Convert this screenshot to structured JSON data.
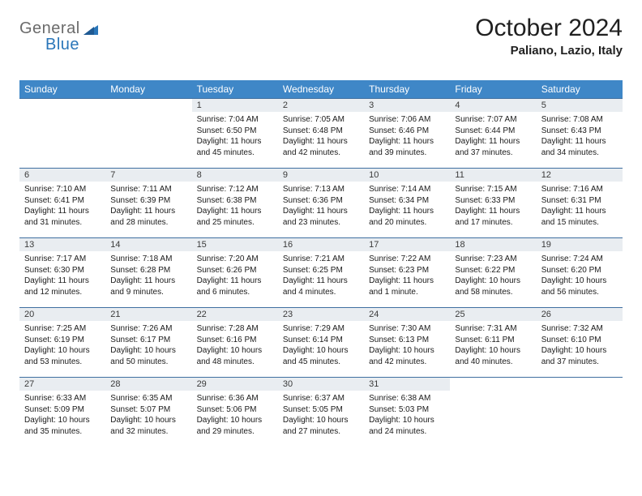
{
  "brand": {
    "part1": "General",
    "part2": "Blue"
  },
  "title": "October 2024",
  "location": "Paliano, Lazio, Italy",
  "colors": {
    "header_bg": "#3f87c7",
    "header_text": "#ffffff",
    "daynum_bg": "#e9edf1",
    "border": "#3f6fa0",
    "brand_gray": "#6b6b6b",
    "brand_blue": "#2a76b9"
  },
  "day_headers": [
    "Sunday",
    "Monday",
    "Tuesday",
    "Wednesday",
    "Thursday",
    "Friday",
    "Saturday"
  ],
  "weeks": [
    [
      null,
      null,
      {
        "n": "1",
        "sunrise": "7:04 AM",
        "sunset": "6:50 PM",
        "daylight": "11 hours and 45 minutes."
      },
      {
        "n": "2",
        "sunrise": "7:05 AM",
        "sunset": "6:48 PM",
        "daylight": "11 hours and 42 minutes."
      },
      {
        "n": "3",
        "sunrise": "7:06 AM",
        "sunset": "6:46 PM",
        "daylight": "11 hours and 39 minutes."
      },
      {
        "n": "4",
        "sunrise": "7:07 AM",
        "sunset": "6:44 PM",
        "daylight": "11 hours and 37 minutes."
      },
      {
        "n": "5",
        "sunrise": "7:08 AM",
        "sunset": "6:43 PM",
        "daylight": "11 hours and 34 minutes."
      }
    ],
    [
      {
        "n": "6",
        "sunrise": "7:10 AM",
        "sunset": "6:41 PM",
        "daylight": "11 hours and 31 minutes."
      },
      {
        "n": "7",
        "sunrise": "7:11 AM",
        "sunset": "6:39 PM",
        "daylight": "11 hours and 28 minutes."
      },
      {
        "n": "8",
        "sunrise": "7:12 AM",
        "sunset": "6:38 PM",
        "daylight": "11 hours and 25 minutes."
      },
      {
        "n": "9",
        "sunrise": "7:13 AM",
        "sunset": "6:36 PM",
        "daylight": "11 hours and 23 minutes."
      },
      {
        "n": "10",
        "sunrise": "7:14 AM",
        "sunset": "6:34 PM",
        "daylight": "11 hours and 20 minutes."
      },
      {
        "n": "11",
        "sunrise": "7:15 AM",
        "sunset": "6:33 PM",
        "daylight": "11 hours and 17 minutes."
      },
      {
        "n": "12",
        "sunrise": "7:16 AM",
        "sunset": "6:31 PM",
        "daylight": "11 hours and 15 minutes."
      }
    ],
    [
      {
        "n": "13",
        "sunrise": "7:17 AM",
        "sunset": "6:30 PM",
        "daylight": "11 hours and 12 minutes."
      },
      {
        "n": "14",
        "sunrise": "7:18 AM",
        "sunset": "6:28 PM",
        "daylight": "11 hours and 9 minutes."
      },
      {
        "n": "15",
        "sunrise": "7:20 AM",
        "sunset": "6:26 PM",
        "daylight": "11 hours and 6 minutes."
      },
      {
        "n": "16",
        "sunrise": "7:21 AM",
        "sunset": "6:25 PM",
        "daylight": "11 hours and 4 minutes."
      },
      {
        "n": "17",
        "sunrise": "7:22 AM",
        "sunset": "6:23 PM",
        "daylight": "11 hours and 1 minute."
      },
      {
        "n": "18",
        "sunrise": "7:23 AM",
        "sunset": "6:22 PM",
        "daylight": "10 hours and 58 minutes."
      },
      {
        "n": "19",
        "sunrise": "7:24 AM",
        "sunset": "6:20 PM",
        "daylight": "10 hours and 56 minutes."
      }
    ],
    [
      {
        "n": "20",
        "sunrise": "7:25 AM",
        "sunset": "6:19 PM",
        "daylight": "10 hours and 53 minutes."
      },
      {
        "n": "21",
        "sunrise": "7:26 AM",
        "sunset": "6:17 PM",
        "daylight": "10 hours and 50 minutes."
      },
      {
        "n": "22",
        "sunrise": "7:28 AM",
        "sunset": "6:16 PM",
        "daylight": "10 hours and 48 minutes."
      },
      {
        "n": "23",
        "sunrise": "7:29 AM",
        "sunset": "6:14 PM",
        "daylight": "10 hours and 45 minutes."
      },
      {
        "n": "24",
        "sunrise": "7:30 AM",
        "sunset": "6:13 PM",
        "daylight": "10 hours and 42 minutes."
      },
      {
        "n": "25",
        "sunrise": "7:31 AM",
        "sunset": "6:11 PM",
        "daylight": "10 hours and 40 minutes."
      },
      {
        "n": "26",
        "sunrise": "7:32 AM",
        "sunset": "6:10 PM",
        "daylight": "10 hours and 37 minutes."
      }
    ],
    [
      {
        "n": "27",
        "sunrise": "6:33 AM",
        "sunset": "5:09 PM",
        "daylight": "10 hours and 35 minutes."
      },
      {
        "n": "28",
        "sunrise": "6:35 AM",
        "sunset": "5:07 PM",
        "daylight": "10 hours and 32 minutes."
      },
      {
        "n": "29",
        "sunrise": "6:36 AM",
        "sunset": "5:06 PM",
        "daylight": "10 hours and 29 minutes."
      },
      {
        "n": "30",
        "sunrise": "6:37 AM",
        "sunset": "5:05 PM",
        "daylight": "10 hours and 27 minutes."
      },
      {
        "n": "31",
        "sunrise": "6:38 AM",
        "sunset": "5:03 PM",
        "daylight": "10 hours and 24 minutes."
      },
      null,
      null
    ]
  ],
  "labels": {
    "sunrise": "Sunrise:",
    "sunset": "Sunset:",
    "daylight": "Daylight:"
  }
}
